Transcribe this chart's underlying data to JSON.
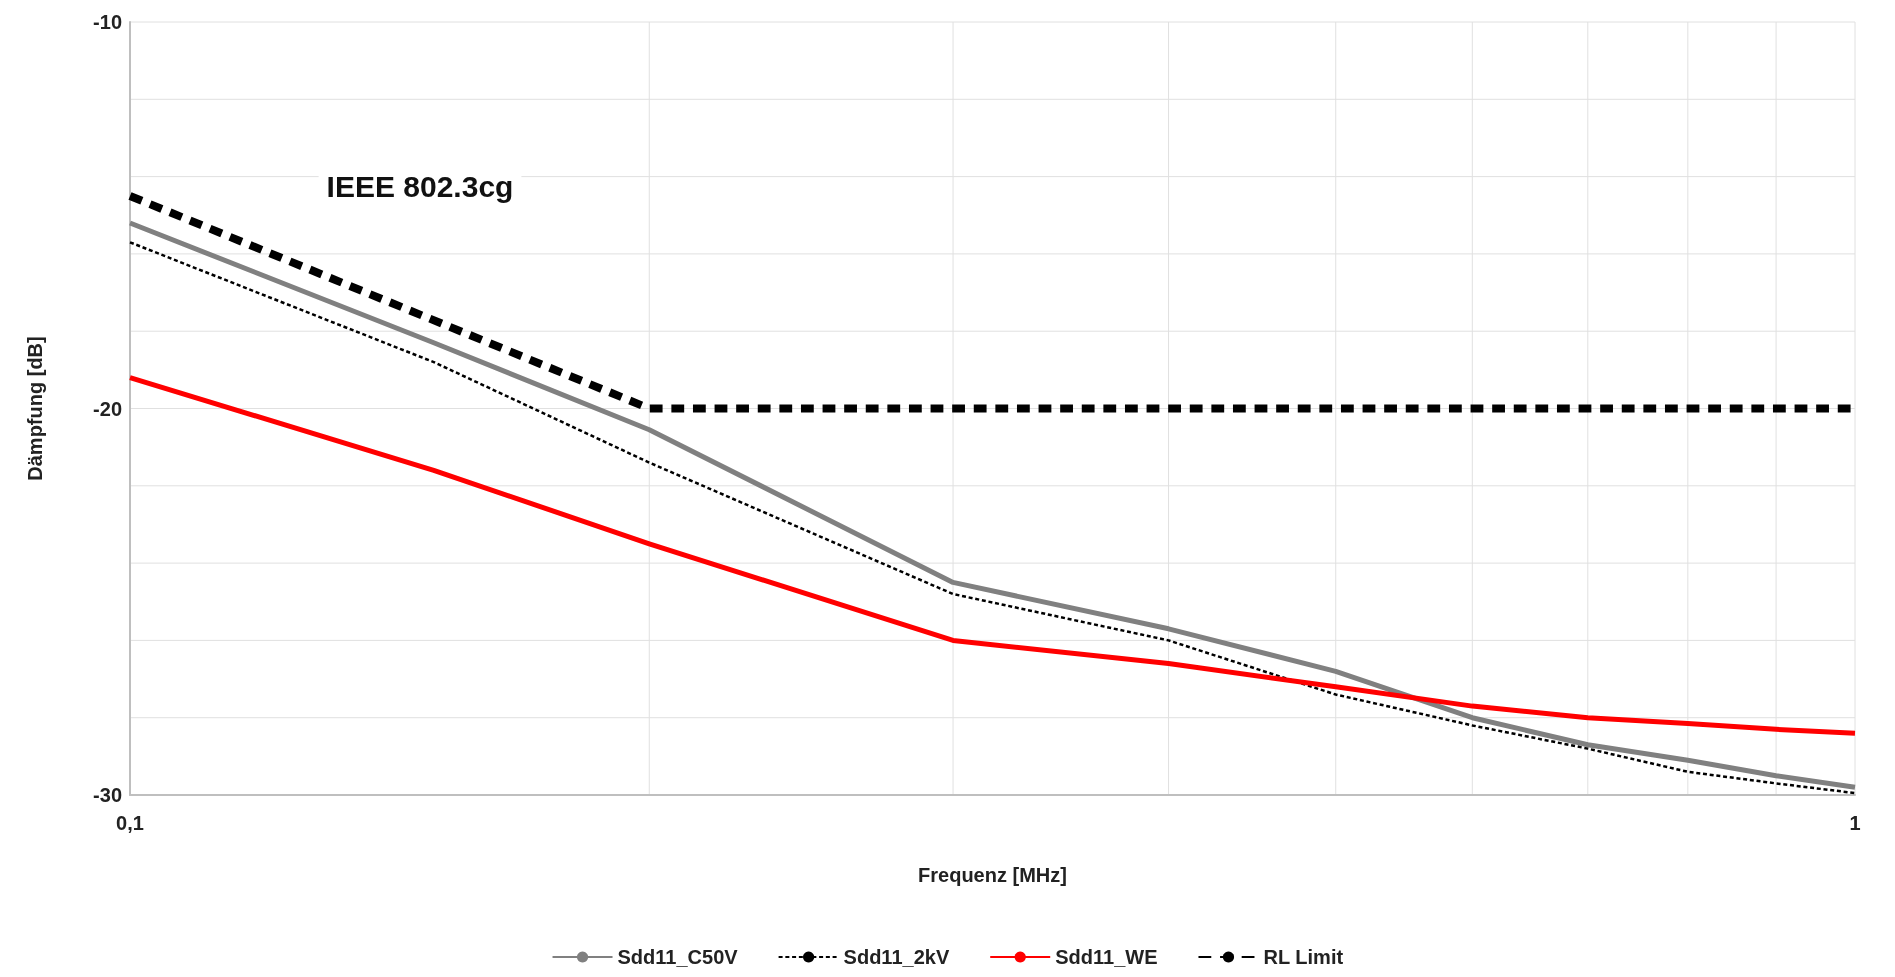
{
  "chart_data": {
    "type": "line",
    "xlabel": "Frequenz [MHz]",
    "ylabel": "Dämpfung [dB]",
    "log": "x",
    "x": [
      0.1,
      0.15,
      0.2,
      0.3,
      0.4,
      0.5,
      0.6,
      0.7,
      0.8,
      0.9,
      1
    ],
    "series": [
      {
        "name": "Sdd11_C50V",
        "color": "#808080",
        "line_style": "solid",
        "values": [
          -15.2,
          -18.3,
          -20.55,
          -24.5,
          -25.7,
          -26.8,
          -28.0,
          -28.7,
          -29.1,
          -29.5,
          -29.8
        ]
      },
      {
        "name": "Sdd11_2kV",
        "color": "#000000",
        "line_style": "dashed",
        "values": [
          -15.7,
          -18.8,
          -21.4,
          -24.8,
          -26.0,
          -27.4,
          -28.2,
          -28.8,
          -29.4,
          -29.7,
          -29.95
        ]
      },
      {
        "name": "Sdd11_WE",
        "color": "#ff0000",
        "line_style": "solid",
        "values": [
          -19.2,
          -21.6,
          -23.5,
          -26.0,
          -26.6,
          -27.2,
          -27.7,
          -28.0,
          -28.15,
          -28.3,
          -28.4
        ]
      },
      {
        "name": "RL Limit",
        "color": "#000000",
        "line_style": "dashed",
        "x": [
          0.1,
          0.2,
          1
        ],
        "values": [
          -14.5,
          -20,
          -20
        ]
      }
    ],
    "xlim": [
      0.1,
      1
    ],
    "xticks": [
      {
        "value": 0.1,
        "label": "0,1"
      },
      {
        "value": 0.2,
        "label": null
      },
      {
        "value": 0.3,
        "label": null
      },
      {
        "value": 0.4,
        "label": null
      },
      {
        "value": 0.5,
        "label": null
      },
      {
        "value": 0.6,
        "label": null
      },
      {
        "value": 0.7,
        "label": null
      },
      {
        "value": 0.8,
        "label": null
      },
      {
        "value": 0.9,
        "label": null
      },
      1
    ],
    "ylim": [
      -30,
      -10
    ],
    "yticks": [
      -30,
      {
        "value": -28,
        "label": null
      },
      {
        "value": -26,
        "label": null
      },
      {
        "value": -24,
        "label": null
      },
      {
        "value": -22,
        "label": null
      },
      -20,
      {
        "value": -18,
        "label": null
      },
      {
        "value": -16,
        "label": null
      },
      {
        "value": -14,
        "label": null
      },
      {
        "value": -12,
        "label": null
      },
      -10
    ],
    "grid": true,
    "legend": "bottom",
    "marker": "none",
    "annotations": [
      "IEEE 802.3cg"
    ]
  }
}
